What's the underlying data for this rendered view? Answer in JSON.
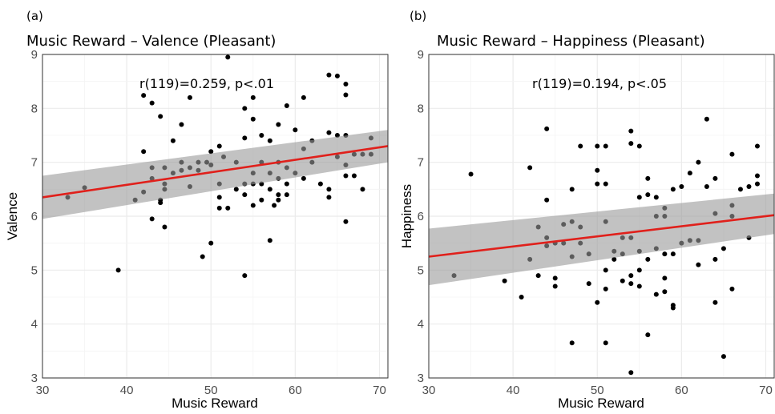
{
  "chart_data": [
    {
      "type": "scatter",
      "panel_label": "(a)",
      "title": "Music Reward – Valence (Pleasant)",
      "annotation": "r(119)=0.259, p<.01",
      "xlabel": "Music Reward",
      "ylabel": "Valence",
      "xlim": [
        30,
        71
      ],
      "ylim": [
        3,
        9
      ],
      "xticks": [
        30,
        40,
        50,
        60,
        70
      ],
      "yticks": [
        3,
        4,
        5,
        6,
        7,
        8,
        9
      ],
      "grid": true,
      "regression": {
        "x": [
          30,
          71
        ],
        "y": [
          6.35,
          7.3
        ],
        "ci_lower": [
          5.95,
          7.0
        ],
        "ci_upper": [
          6.75,
          7.6
        ]
      },
      "points": [
        [
          33,
          6.35
        ],
        [
          35,
          6.53
        ],
        [
          39,
          5.0
        ],
        [
          41,
          6.3
        ],
        [
          42,
          8.24
        ],
        [
          42,
          7.2
        ],
        [
          42,
          6.45
        ],
        [
          43,
          8.1
        ],
        [
          43,
          6.9
        ],
        [
          43,
          6.7
        ],
        [
          43,
          5.95
        ],
        [
          44,
          7.85
        ],
        [
          44,
          6.3
        ],
        [
          44,
          6.25
        ],
        [
          44.5,
          6.9
        ],
        [
          44.5,
          6.6
        ],
        [
          44.5,
          6.5
        ],
        [
          44.5,
          5.8
        ],
        [
          45.5,
          7.4
        ],
        [
          45.5,
          6.8
        ],
        [
          46.5,
          7.7
        ],
        [
          46.5,
          7.0
        ],
        [
          46.5,
          6.85
        ],
        [
          47.5,
          8.2
        ],
        [
          47.5,
          6.9
        ],
        [
          47.5,
          6.55
        ],
        [
          48.5,
          7.0
        ],
        [
          48.5,
          6.85
        ],
        [
          49,
          5.25
        ],
        [
          49.5,
          7.0
        ],
        [
          50,
          7.2
        ],
        [
          50,
          6.95
        ],
        [
          50,
          5.5
        ],
        [
          51,
          7.3
        ],
        [
          51,
          6.6
        ],
        [
          51,
          6.35
        ],
        [
          51,
          6.15
        ],
        [
          51.5,
          7.1
        ],
        [
          52,
          8.95
        ],
        [
          52,
          6.15
        ],
        [
          53,
          7.0
        ],
        [
          53,
          6.5
        ],
        [
          54,
          8.0
        ],
        [
          54,
          7.45
        ],
        [
          54,
          6.6
        ],
        [
          54,
          6.4
        ],
        [
          54,
          4.9
        ],
        [
          55,
          8.2
        ],
        [
          55,
          7.8
        ],
        [
          55,
          6.8
        ],
        [
          55,
          6.6
        ],
        [
          55,
          6.2
        ],
        [
          56,
          7.5
        ],
        [
          56,
          7.0
        ],
        [
          56,
          6.6
        ],
        [
          56,
          6.3
        ],
        [
          57,
          7.4
        ],
        [
          57,
          6.8
        ],
        [
          57,
          6.5
        ],
        [
          57,
          5.55
        ],
        [
          57.5,
          6.2
        ],
        [
          58,
          7.7
        ],
        [
          58,
          7.0
        ],
        [
          58,
          6.7
        ],
        [
          58,
          6.4
        ],
        [
          58,
          6.3
        ],
        [
          59,
          8.05
        ],
        [
          59,
          6.9
        ],
        [
          59,
          6.6
        ],
        [
          59,
          6.4
        ],
        [
          60,
          7.6
        ],
        [
          60,
          6.8
        ],
        [
          61,
          8.2
        ],
        [
          61,
          7.25
        ],
        [
          61,
          6.7
        ],
        [
          62,
          7.4
        ],
        [
          62,
          7.0
        ],
        [
          63,
          6.6
        ],
        [
          64,
          8.62
        ],
        [
          64,
          7.55
        ],
        [
          64,
          6.5
        ],
        [
          64,
          6.35
        ],
        [
          65,
          8.6
        ],
        [
          65,
          7.5
        ],
        [
          65,
          7.1
        ],
        [
          66,
          8.45
        ],
        [
          66,
          8.25
        ],
        [
          66,
          7.5
        ],
        [
          66,
          6.95
        ],
        [
          66,
          6.75
        ],
        [
          66,
          5.9
        ],
        [
          67,
          7.15
        ],
        [
          67,
          6.75
        ],
        [
          68,
          7.15
        ],
        [
          68,
          6.5
        ],
        [
          69,
          7.45
        ],
        [
          69,
          7.15
        ]
      ]
    },
    {
      "type": "scatter",
      "panel_label": "(b)",
      "title": "Music Reward – Happiness (Pleasant)",
      "annotation": "r(119)=0.194, p<.05",
      "xlabel": "Music Reward",
      "ylabel": "Happiness",
      "xlim": [
        30,
        71
      ],
      "ylim": [
        3,
        9
      ],
      "xticks": [
        30,
        40,
        50,
        60,
        70
      ],
      "yticks": [
        3,
        4,
        5,
        6,
        7,
        8,
        9
      ],
      "grid": true,
      "regression": {
        "x": [
          30,
          71
        ],
        "y": [
          5.25,
          6.02
        ],
        "ci_lower": [
          4.72,
          5.67
        ],
        "ci_upper": [
          5.77,
          6.42
        ]
      },
      "points": [
        [
          33,
          4.9
        ],
        [
          35,
          6.78
        ],
        [
          39,
          4.8
        ],
        [
          41,
          4.5
        ],
        [
          42,
          6.9
        ],
        [
          42,
          5.2
        ],
        [
          43,
          4.9
        ],
        [
          43,
          5.8
        ],
        [
          44,
          7.62
        ],
        [
          44,
          6.3
        ],
        [
          44,
          5.6
        ],
        [
          44,
          5.45
        ],
        [
          45,
          4.85
        ],
        [
          45,
          4.7
        ],
        [
          45,
          5.5
        ],
        [
          46,
          5.85
        ],
        [
          46,
          5.5
        ],
        [
          47,
          6.5
        ],
        [
          47,
          5.9
        ],
        [
          47,
          5.25
        ],
        [
          47,
          3.65
        ],
        [
          48,
          7.3
        ],
        [
          48,
          5.8
        ],
        [
          48,
          5.5
        ],
        [
          49,
          4.75
        ],
        [
          49,
          5.3
        ],
        [
          50,
          7.3
        ],
        [
          50,
          6.85
        ],
        [
          50,
          6.6
        ],
        [
          50,
          4.4
        ],
        [
          51,
          7.3
        ],
        [
          51,
          6.6
        ],
        [
          51,
          5.9
        ],
        [
          51,
          5.0
        ],
        [
          51,
          4.65
        ],
        [
          51,
          3.65
        ],
        [
          52,
          5.35
        ],
        [
          52,
          5.2
        ],
        [
          53,
          5.6
        ],
        [
          53,
          5.3
        ],
        [
          53,
          4.8
        ],
        [
          54,
          7.58
        ],
        [
          54,
          7.35
        ],
        [
          54,
          5.6
        ],
        [
          54,
          4.9
        ],
        [
          54,
          4.75
        ],
        [
          54,
          3.1
        ],
        [
          55,
          6.35
        ],
        [
          55,
          7.3
        ],
        [
          55,
          5.35
        ],
        [
          55,
          5.0
        ],
        [
          55,
          4.7
        ],
        [
          56,
          6.4
        ],
        [
          56,
          6.7
        ],
        [
          56,
          5.2
        ],
        [
          56,
          3.8
        ],
        [
          57,
          6.35
        ],
        [
          57,
          6.0
        ],
        [
          57,
          5.4
        ],
        [
          57,
          4.55
        ],
        [
          58,
          6.15
        ],
        [
          58,
          6.0
        ],
        [
          58,
          5.3
        ],
        [
          58,
          4.85
        ],
        [
          58,
          4.6
        ],
        [
          59,
          6.5
        ],
        [
          59,
          5.3
        ],
        [
          59,
          4.35
        ],
        [
          59,
          4.3
        ],
        [
          60,
          6.55
        ],
        [
          60,
          5.5
        ],
        [
          61,
          6.8
        ],
        [
          61,
          5.55
        ],
        [
          62,
          7.0
        ],
        [
          62,
          5.1
        ],
        [
          62,
          5.55
        ],
        [
          63,
          7.8
        ],
        [
          63,
          6.55
        ],
        [
          64,
          6.7
        ],
        [
          64,
          6.05
        ],
        [
          64,
          5.2
        ],
        [
          64,
          4.4
        ],
        [
          65,
          5.4
        ],
        [
          65,
          3.4
        ],
        [
          66,
          7.15
        ],
        [
          66,
          6.2
        ],
        [
          66,
          6.0
        ],
        [
          66,
          4.65
        ],
        [
          67,
          6.5
        ],
        [
          68,
          6.55
        ],
        [
          68,
          5.6
        ],
        [
          69,
          7.3
        ],
        [
          69,
          6.75
        ],
        [
          69,
          6.6
        ]
      ]
    }
  ]
}
